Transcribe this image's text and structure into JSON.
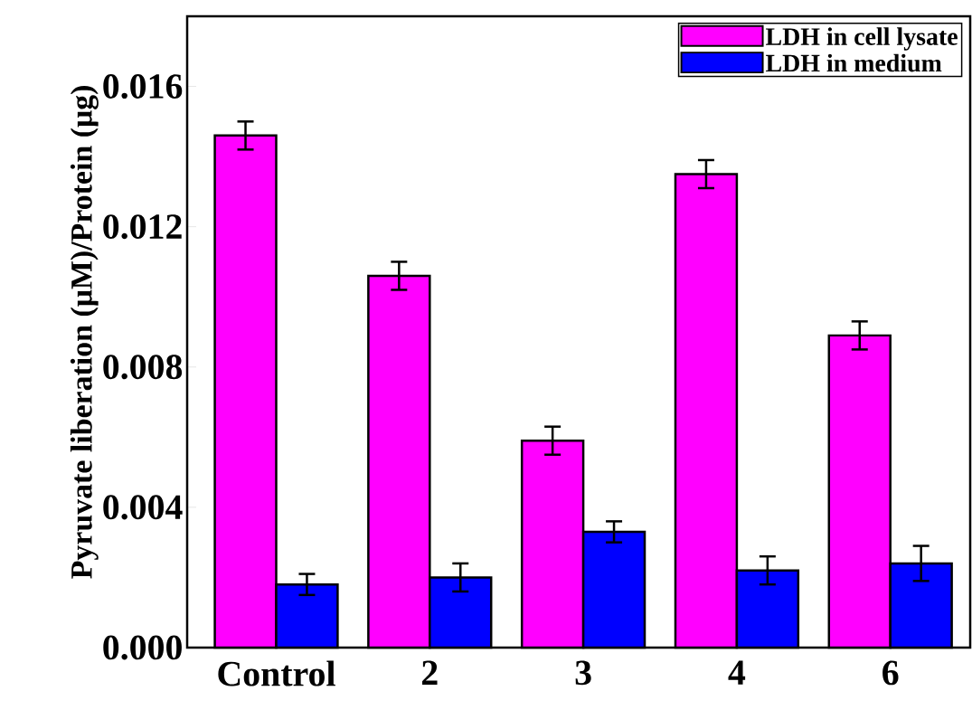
{
  "chart_data": {
    "type": "bar",
    "ylabel": "Pyruvate liberation (μM)/Protein (μg)",
    "categories": [
      "Control",
      "2",
      "3",
      "4",
      "6"
    ],
    "series": [
      {
        "name": "LDH in cell lysate",
        "color": "#ff00ff",
        "values": [
          0.0146,
          0.0106,
          0.0059,
          0.0135,
          0.0089
        ],
        "errors": [
          0.0004,
          0.0004,
          0.0004,
          0.0004,
          0.0004
        ]
      },
      {
        "name": "LDH in medium",
        "color": "#0000ff",
        "values": [
          0.0018,
          0.002,
          0.0033,
          0.0022,
          0.0024
        ],
        "errors": [
          0.0003,
          0.0004,
          0.0003,
          0.0004,
          0.0005
        ]
      }
    ],
    "ylim": [
      0,
      0.018
    ],
    "yticks": [
      {
        "value": 0,
        "label": "0.000"
      },
      {
        "value": 0.004,
        "label": "0.004"
      },
      {
        "value": 0.008,
        "label": "0.008"
      },
      {
        "value": 0.012,
        "label": "0.012"
      },
      {
        "value": 0.016,
        "label": "0.016"
      }
    ],
    "legend": "top right",
    "grid": false
  }
}
